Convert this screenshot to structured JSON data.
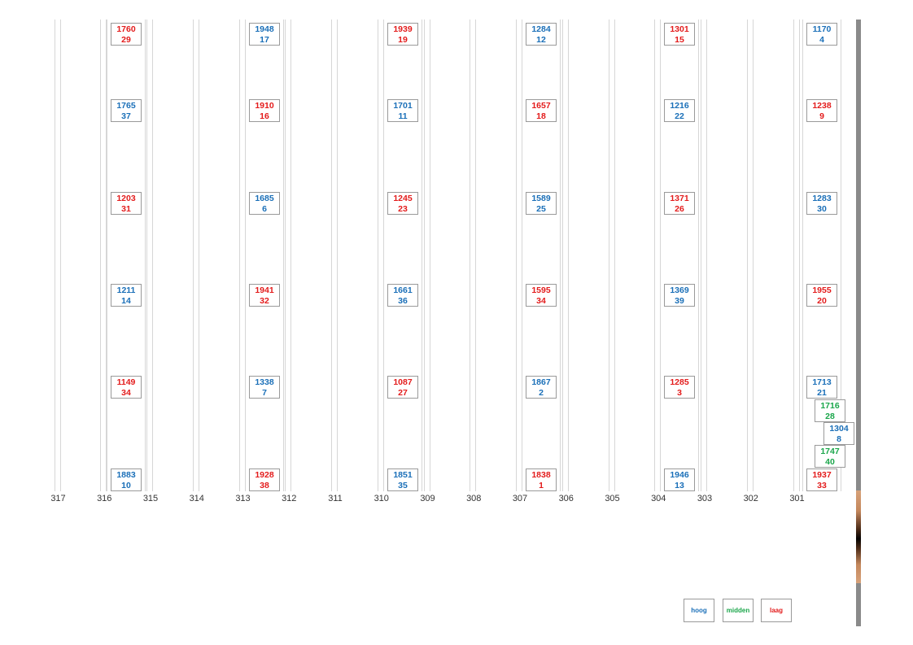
{
  "colors": {
    "hoog": "#1a6fb8",
    "midden": "#1aa64a",
    "laag": "#e31b1b"
  },
  "axis": {
    "labels": [
      "317",
      "316",
      "315",
      "314",
      "313",
      "312",
      "311",
      "310",
      "309",
      "308",
      "307",
      "306",
      "305",
      "304",
      "303",
      "302",
      "301"
    ]
  },
  "cards": [
    {
      "col": 0,
      "row": 0,
      "top": "1760",
      "bottom": "29",
      "level": "laag"
    },
    {
      "col": 0,
      "row": 1,
      "top": "1765",
      "bottom": "37",
      "level": "hoog"
    },
    {
      "col": 0,
      "row": 2,
      "top": "1203",
      "bottom": "31",
      "level": "laag"
    },
    {
      "col": 0,
      "row": 3,
      "top": "1211",
      "bottom": "14",
      "level": "hoog"
    },
    {
      "col": 0,
      "row": 4,
      "top": "1149",
      "bottom": "34",
      "level": "laag"
    },
    {
      "col": 0,
      "row": 5,
      "top": "1883",
      "bottom": "10",
      "level": "hoog"
    },
    {
      "col": 1,
      "row": 0,
      "top": "1948",
      "bottom": "17",
      "level": "hoog"
    },
    {
      "col": 1,
      "row": 1,
      "top": "1910",
      "bottom": "16",
      "level": "laag"
    },
    {
      "col": 1,
      "row": 2,
      "top": "1685",
      "bottom": "6",
      "level": "hoog"
    },
    {
      "col": 1,
      "row": 3,
      "top": "1941",
      "bottom": "32",
      "level": "laag"
    },
    {
      "col": 1,
      "row": 4,
      "top": "1338",
      "bottom": "7",
      "level": "hoog"
    },
    {
      "col": 1,
      "row": 5,
      "top": "1928",
      "bottom": "38",
      "level": "laag"
    },
    {
      "col": 2,
      "row": 0,
      "top": "1939",
      "bottom": "19",
      "level": "laag"
    },
    {
      "col": 2,
      "row": 1,
      "top": "1701",
      "bottom": "11",
      "level": "hoog"
    },
    {
      "col": 2,
      "row": 2,
      "top": "1245",
      "bottom": "23",
      "level": "laag"
    },
    {
      "col": 2,
      "row": 3,
      "top": "1661",
      "bottom": "36",
      "level": "hoog"
    },
    {
      "col": 2,
      "row": 4,
      "top": "1087",
      "bottom": "27",
      "level": "laag"
    },
    {
      "col": 2,
      "row": 5,
      "top": "1851",
      "bottom": "35",
      "level": "hoog"
    },
    {
      "col": 3,
      "row": 0,
      "top": "1284",
      "bottom": "12",
      "level": "hoog"
    },
    {
      "col": 3,
      "row": 1,
      "top": "1657",
      "bottom": "18",
      "level": "laag"
    },
    {
      "col": 3,
      "row": 2,
      "top": "1589",
      "bottom": "25",
      "level": "hoog"
    },
    {
      "col": 3,
      "row": 3,
      "top": "1595",
      "bottom": "34",
      "level": "laag"
    },
    {
      "col": 3,
      "row": 4,
      "top": "1867",
      "bottom": "2",
      "level": "hoog"
    },
    {
      "col": 3,
      "row": 5,
      "top": "1838",
      "bottom": "1",
      "level": "laag"
    },
    {
      "col": 4,
      "row": 0,
      "top": "1301",
      "bottom": "15",
      "level": "laag"
    },
    {
      "col": 4,
      "row": 1,
      "top": "1216",
      "bottom": "22",
      "level": "hoog"
    },
    {
      "col": 4,
      "row": 2,
      "top": "1371",
      "bottom": "26",
      "level": "laag"
    },
    {
      "col": 4,
      "row": 3,
      "top": "1369",
      "bottom": "39",
      "level": "hoog"
    },
    {
      "col": 4,
      "row": 4,
      "top": "1285",
      "bottom": "3",
      "level": "laag"
    },
    {
      "col": 4,
      "row": 5,
      "top": "1946",
      "bottom": "13",
      "level": "hoog"
    },
    {
      "col": 5,
      "row": 0,
      "top": "1170",
      "bottom": "4",
      "level": "hoog"
    },
    {
      "col": 5,
      "row": 1,
      "top": "1238",
      "bottom": "9",
      "level": "laag"
    },
    {
      "col": 5,
      "row": 2,
      "top": "1283",
      "bottom": "30",
      "level": "hoog"
    },
    {
      "col": 5,
      "row": 3,
      "top": "1955",
      "bottom": "20",
      "level": "laag"
    },
    {
      "col": 5,
      "row": 4,
      "top": "1713",
      "bottom": "21",
      "level": "hoog"
    },
    {
      "col": 5,
      "row": 5,
      "top": "1937",
      "bottom": "33",
      "level": "laag"
    },
    {
      "col": 5,
      "row": "stack-1",
      "top": "1716",
      "bottom": "28",
      "level": "midden"
    },
    {
      "col": 5,
      "row": "stack-2",
      "top": "1304",
      "bottom": "8",
      "level": "hoog"
    },
    {
      "col": 5,
      "row": "stack-3",
      "top": "1747",
      "bottom": "40",
      "level": "midden"
    }
  ],
  "legend": [
    {
      "label": "hoog",
      "level": "hoog"
    },
    {
      "label": "midden",
      "level": "midden"
    },
    {
      "label": "laag",
      "level": "laag"
    }
  ],
  "scrollbar": {
    "thumb": "gradient-thumb"
  }
}
